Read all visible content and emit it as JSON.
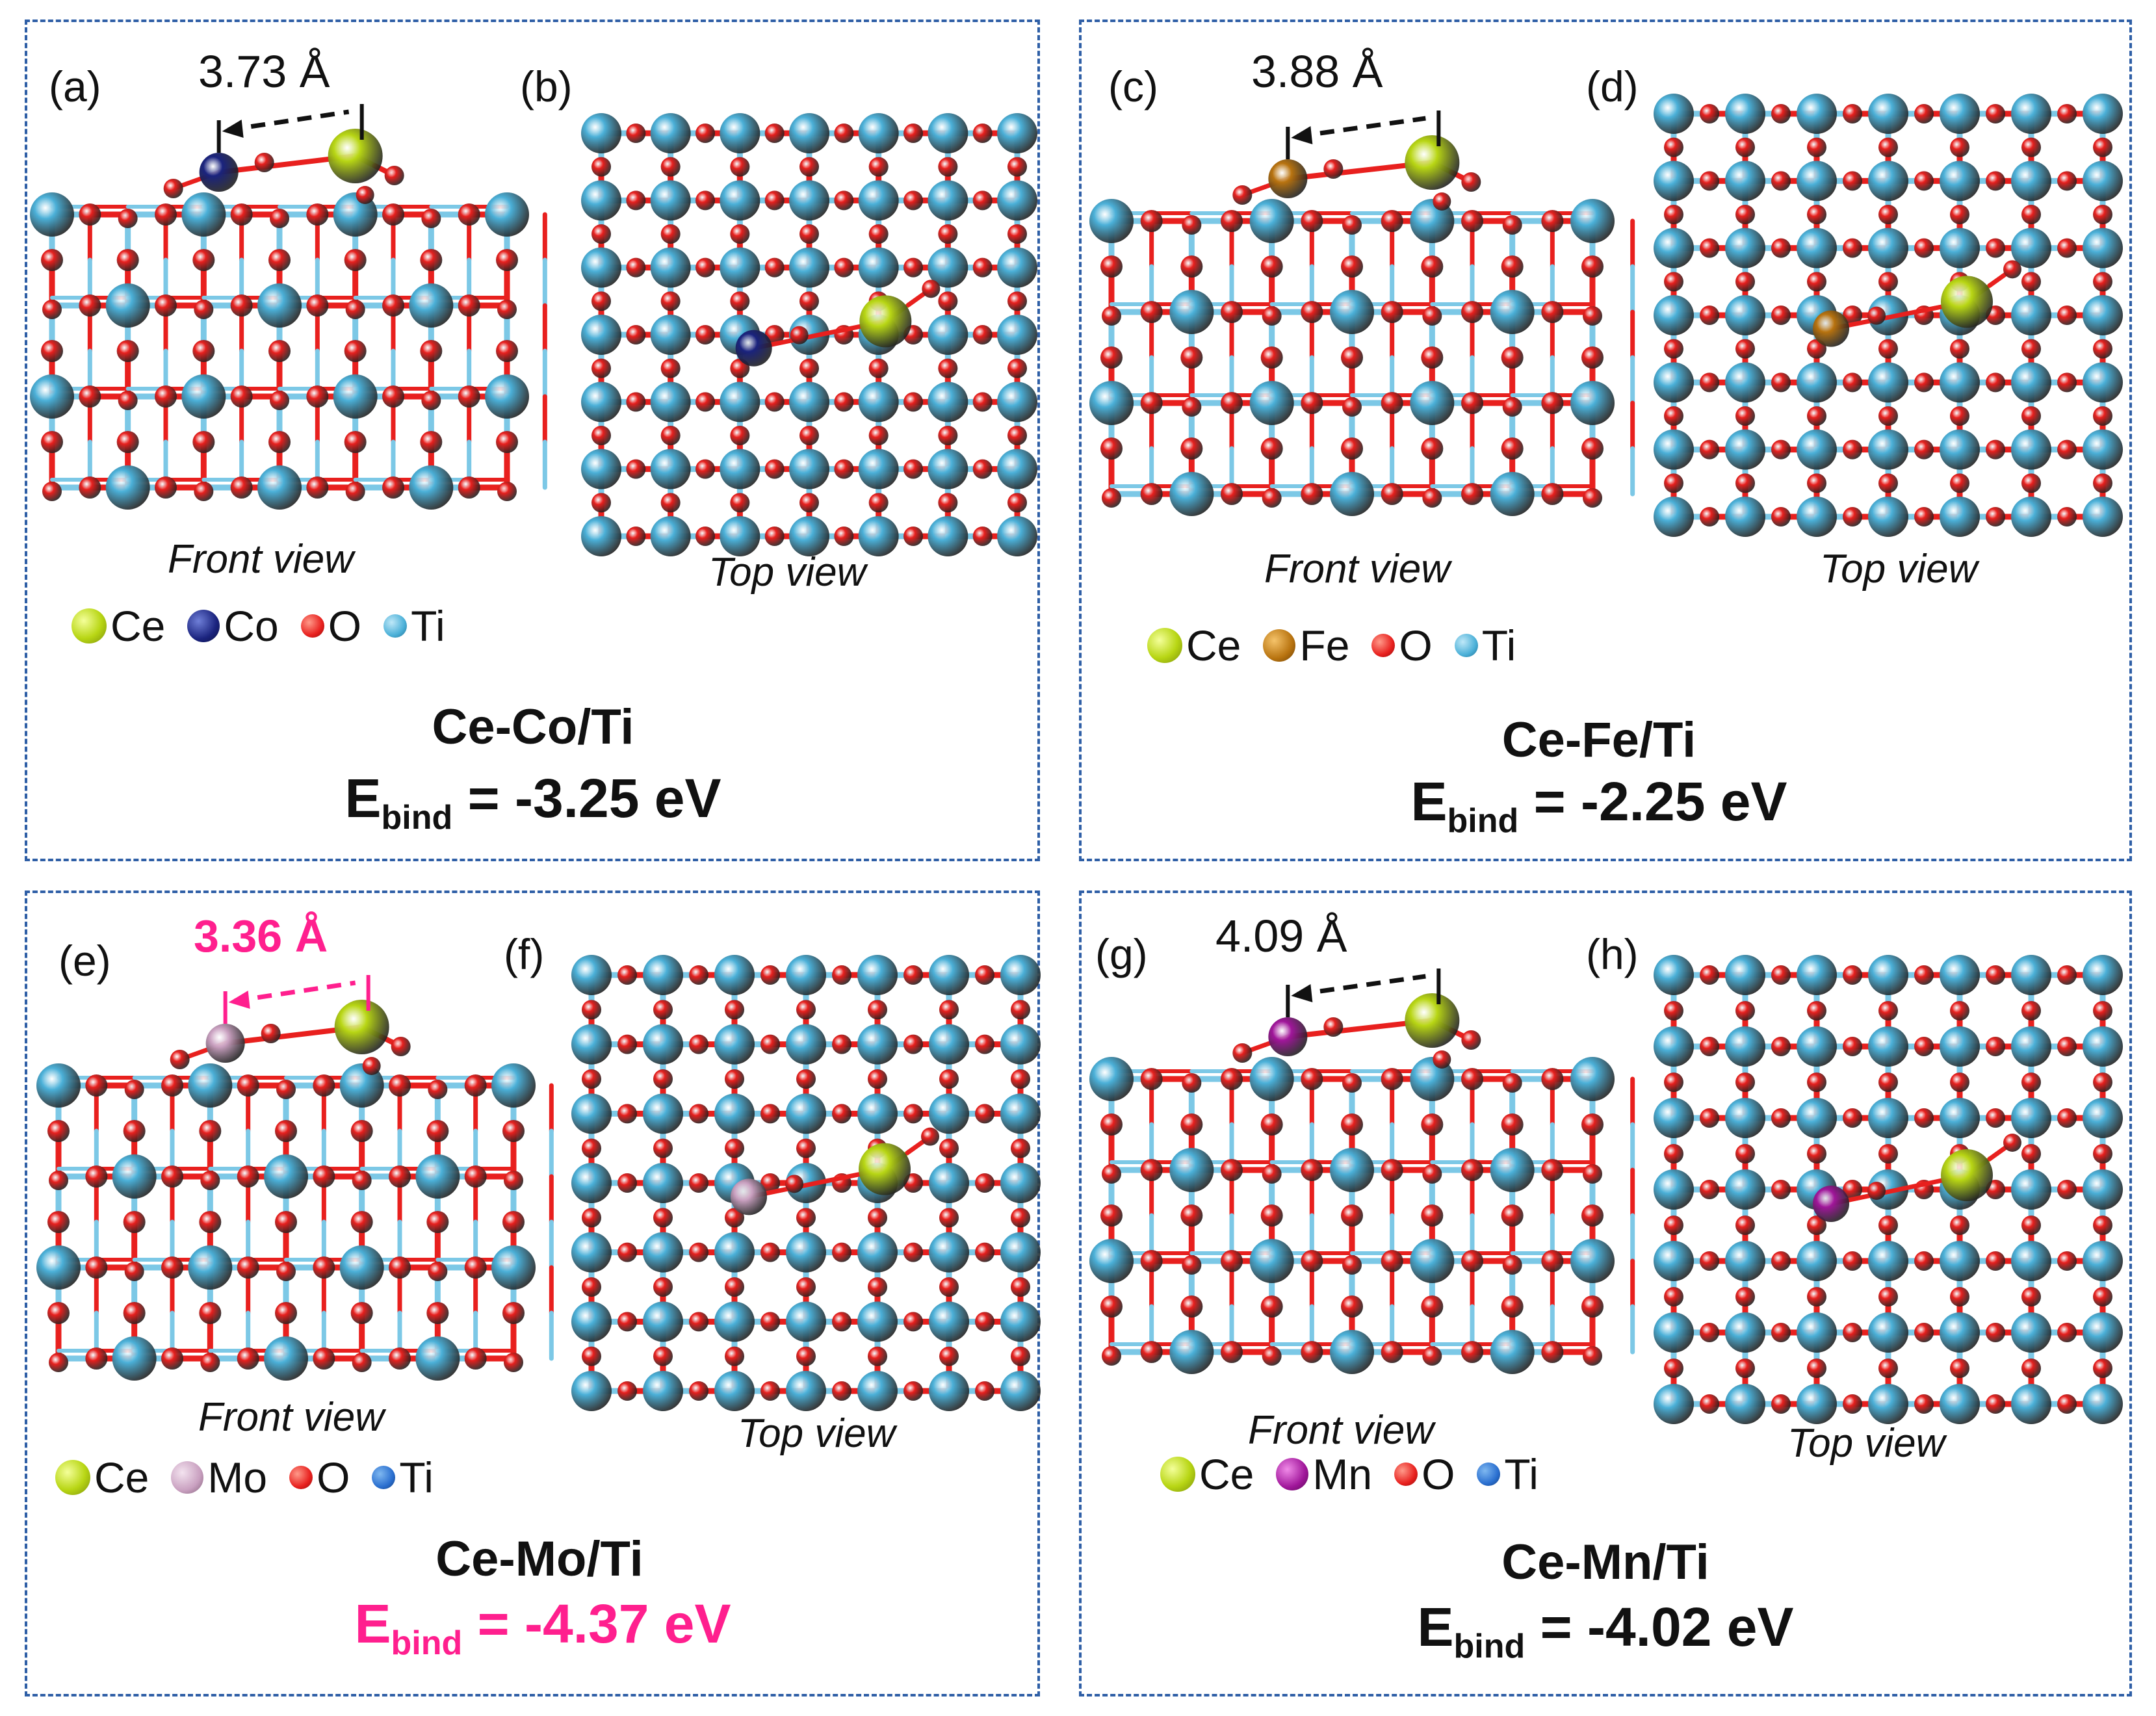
{
  "colors": {
    "Ce": "#b8d614",
    "Co": "#1a237e",
    "Fe": "#b8730f",
    "Mo": "#c9a0c0",
    "Mn": "#a0169a",
    "O": "#e8201e",
    "Ti": "#4bb0d8",
    "frame": "#2f5fa6",
    "highlight": "#ff1f8e"
  },
  "panels": [
    {
      "id": "ce-co",
      "label_front": "(a)",
      "label_top": "(b)",
      "distance": "3.73 Å",
      "front_view": "Front view",
      "top_view": "Top view",
      "legend": [
        "Ce",
        "Co",
        "O",
        "Ti"
      ],
      "name": "Ce-Co/Ti",
      "ebind_prefix": "E",
      "ebind_sub": "bind",
      "ebind_value": "= -3.25 eV",
      "dopant": "Co"
    },
    {
      "id": "ce-fe",
      "label_front": "(c)",
      "label_top": "(d)",
      "distance": "3.88 Å",
      "front_view": "Front view",
      "top_view": "Top view",
      "legend": [
        "Ce",
        "Fe",
        "O",
        "Ti"
      ],
      "name": "Ce-Fe/Ti",
      "ebind_prefix": "E",
      "ebind_sub": "bind",
      "ebind_value": "= -2.25 eV",
      "dopant": "Fe"
    },
    {
      "id": "ce-mo",
      "label_front": "(e)",
      "label_top": "(f)",
      "distance": "3.36 Å",
      "front_view": "Front view",
      "top_view": "Top view",
      "legend": [
        "Ce",
        "Mo",
        "O",
        "Ti"
      ],
      "name": "Ce-Mo/Ti",
      "ebind_prefix": "E",
      "ebind_sub": "bind",
      "ebind_value": "= -4.37 eV",
      "dopant": "Mo"
    },
    {
      "id": "ce-mn",
      "label_front": "(g)",
      "label_top": "(h)",
      "distance": "4.09 Å",
      "front_view": "Front view",
      "top_view": "Top view",
      "legend": [
        "Ce",
        "Mn",
        "O",
        "Ti"
      ],
      "name": "Ce-Mn/Ti",
      "ebind_prefix": "E",
      "ebind_sub": "bind",
      "ebind_value": "= -4.02 eV",
      "dopant": "Mn"
    }
  ]
}
